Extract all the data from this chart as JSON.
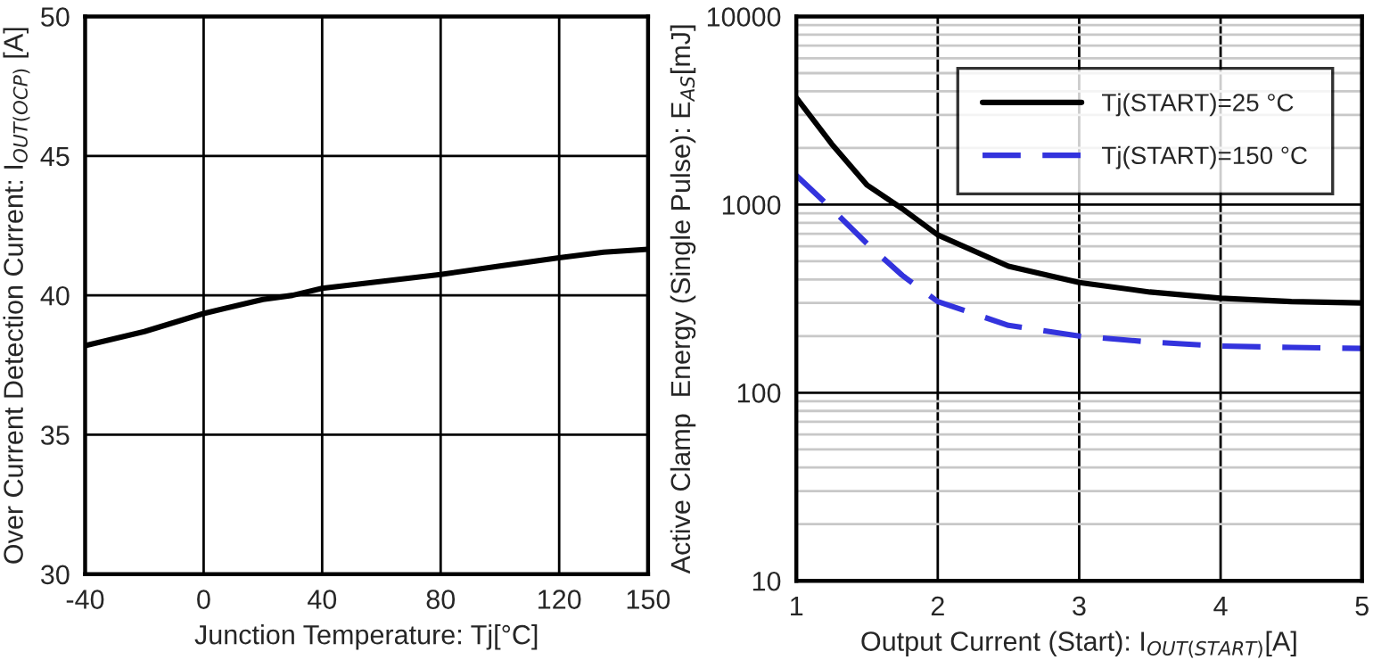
{
  "chart_data": [
    {
      "type": "line",
      "xlabel": "Junction Temperature: Tj[°C]",
      "ylabel": "Over Current Detection Current: I$_{OUT(OCP)}$ [A]",
      "xlim": [
        -40,
        150
      ],
      "xticks": [
        -40,
        0,
        40,
        80,
        120,
        150
      ],
      "ylim": [
        30,
        50
      ],
      "yticks": [
        30,
        35,
        40,
        45,
        50
      ],
      "grid": true,
      "legend": false,
      "line_style": "solid",
      "marker": "none",
      "series": [
        {
          "color": "#000000",
          "x": [
            -40,
            -20,
            0,
            20,
            30,
            40,
            60,
            80,
            100,
            120,
            135,
            150
          ],
          "values": [
            38.2,
            38.7,
            39.35,
            39.85,
            40.0,
            40.25,
            40.5,
            40.75,
            41.05,
            41.35,
            41.55,
            41.65
          ]
        }
      ]
    },
    {
      "type": "line",
      "xlabel": "Output Current (Start): I$_{OUT(START)}$[A]",
      "ylabel": "Active Clamp  Energy (Single Pulse): E$_{AS}$[mJ]",
      "xlim": [
        1,
        5
      ],
      "xticks": [
        1,
        2,
        3,
        4,
        5
      ],
      "ylim": [
        10,
        10000
      ],
      "yticks": [
        10,
        100,
        1000,
        10000
      ],
      "log": "y",
      "grid": true,
      "legend": "top right",
      "marker": "none",
      "series": [
        {
          "name": "Tj(START)=25 °C",
          "color": "#000000",
          "line_style": "solid",
          "x": [
            1,
            1.25,
            1.5,
            1.75,
            2,
            2.5,
            3,
            3.5,
            4,
            4.5,
            5
          ],
          "values": [
            3700,
            2100,
            1270,
            950,
            690,
            470,
            385,
            343,
            318,
            305,
            300
          ]
        },
        {
          "name": "Tj(START)=150 °C",
          "color": "#3333dd",
          "line_style": "dashed",
          "x": [
            1,
            1.25,
            1.5,
            1.75,
            2,
            2.5,
            3,
            3.5,
            4,
            4.5,
            5
          ],
          "values": [
            1430,
            950,
            620,
            420,
            305,
            228,
            200,
            186,
            177,
            174,
            172
          ]
        }
      ]
    }
  ]
}
